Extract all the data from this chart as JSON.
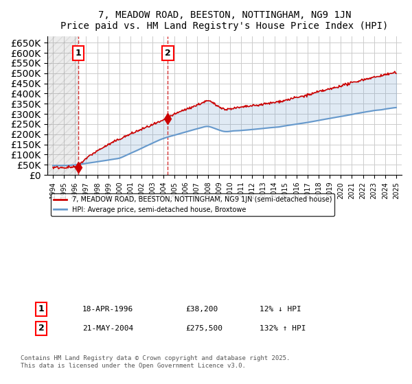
{
  "title": "7, MEADOW ROAD, BEESTON, NOTTINGHAM, NG9 1JN",
  "subtitle": "Price paid vs. HM Land Registry's House Price Index (HPI)",
  "ylabel_ticks": [
    "£0",
    "£50K",
    "£100K",
    "£150K",
    "£200K",
    "£250K",
    "£300K",
    "£350K",
    "£400K",
    "£450K",
    "£500K",
    "£550K",
    "£600K",
    "£650K"
  ],
  "ytick_values": [
    0,
    50000,
    100000,
    150000,
    200000,
    250000,
    300000,
    350000,
    400000,
    450000,
    500000,
    550000,
    600000,
    650000
  ],
  "xmin": 1993.5,
  "xmax": 2025.5,
  "ymin": 0,
  "ymax": 680000,
  "sale1_date": "18-APR-1996",
  "sale1_price": 38200,
  "sale1_label": "£38,200",
  "sale1_pct": "12% ↓ HPI",
  "sale1_x": 1996.3,
  "sale2_date": "21-MAY-2004",
  "sale2_price": 275500,
  "sale2_label": "£275,500",
  "sale2_pct": "132% ↑ HPI",
  "sale2_x": 2004.38,
  "red_color": "#cc0000",
  "blue_color": "#6699cc",
  "bg_color": "#ffffff",
  "grid_color": "#cccccc",
  "hatch_color": "#aaaaaa",
  "legend_line1": "7, MEADOW ROAD, BEESTON, NOTTINGHAM, NG9 1JN (semi-detached house)",
  "legend_line2": "HPI: Average price, semi-detached house, Broxtowe",
  "footnote": "Contains HM Land Registry data © Crown copyright and database right 2025.\nThis data is licensed under the Open Government Licence v3.0.",
  "box1_label": "1",
  "box2_label": "2"
}
